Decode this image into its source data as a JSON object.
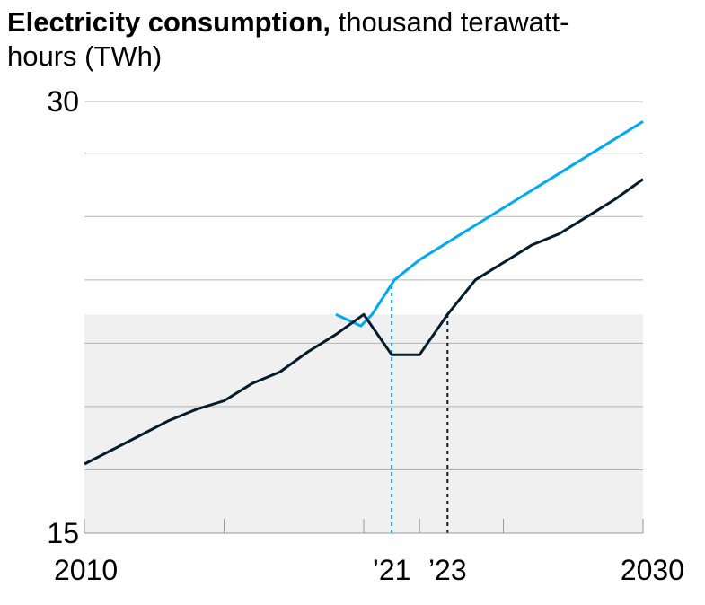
{
  "title": {
    "bold": "Electricity consumption,",
    "rest": " thousand terawatt-hours (TWh)"
  },
  "chart_data": {
    "type": "line",
    "title": "Electricity consumption, thousand terawatt-hours (TWh)",
    "xlabel": "",
    "ylabel": "",
    "xlim": [
      2010,
      2030
    ],
    "ylim": [
      15,
      30
    ],
    "y_tick_labels": [
      {
        "value": 30,
        "label": "30"
      },
      {
        "value": 15,
        "label": "15"
      }
    ],
    "gridlines_y": [
      15,
      17.2,
      19.4,
      21.6,
      23.8,
      26,
      28.2,
      30
    ],
    "x_tick_values": [
      2010,
      2015,
      2020,
      2022,
      2025,
      2030
    ],
    "x_tick_labels": [
      {
        "value": 2010,
        "label": "2010"
      },
      {
        "value": 2021,
        "label": "’21"
      },
      {
        "value": 2023,
        "label": "’23"
      },
      {
        "value": 2030,
        "label": "2030"
      }
    ],
    "shaded_band": {
      "y_from": 15,
      "y_to": 22.6
    },
    "reference_lines": [
      {
        "x": 2021,
        "color": "#00a9f4",
        "style": "dashed"
      },
      {
        "x": 2023,
        "color": "#051c2c",
        "style": "dashed"
      }
    ],
    "series": [
      {
        "color": "#00a9f4",
        "x": [
          2019,
          2019.9,
          2020.3,
          2021.1,
          2022,
          2023,
          2024,
          2025,
          2026,
          2027,
          2028,
          2029,
          2030
        ],
        "y": [
          22.6,
          22.2,
          22.6,
          23.8,
          24.5,
          25.1,
          25.7,
          26.3,
          26.9,
          27.5,
          28.1,
          28.7,
          29.3
        ]
      },
      {
        "color": "#051c2c",
        "x": [
          2010,
          2011,
          2012,
          2013,
          2014,
          2015,
          2016,
          2017,
          2018,
          2019,
          2020,
          2021,
          2022,
          2023,
          2024,
          2025,
          2026,
          2027,
          2028,
          2029,
          2030
        ],
        "y": [
          17.4,
          17.9,
          18.4,
          18.9,
          19.3,
          19.6,
          20.2,
          20.6,
          21.3,
          21.9,
          22.6,
          21.2,
          21.2,
          22.6,
          23.8,
          24.4,
          25.0,
          25.4,
          26.0,
          26.6,
          27.3
        ]
      }
    ]
  }
}
